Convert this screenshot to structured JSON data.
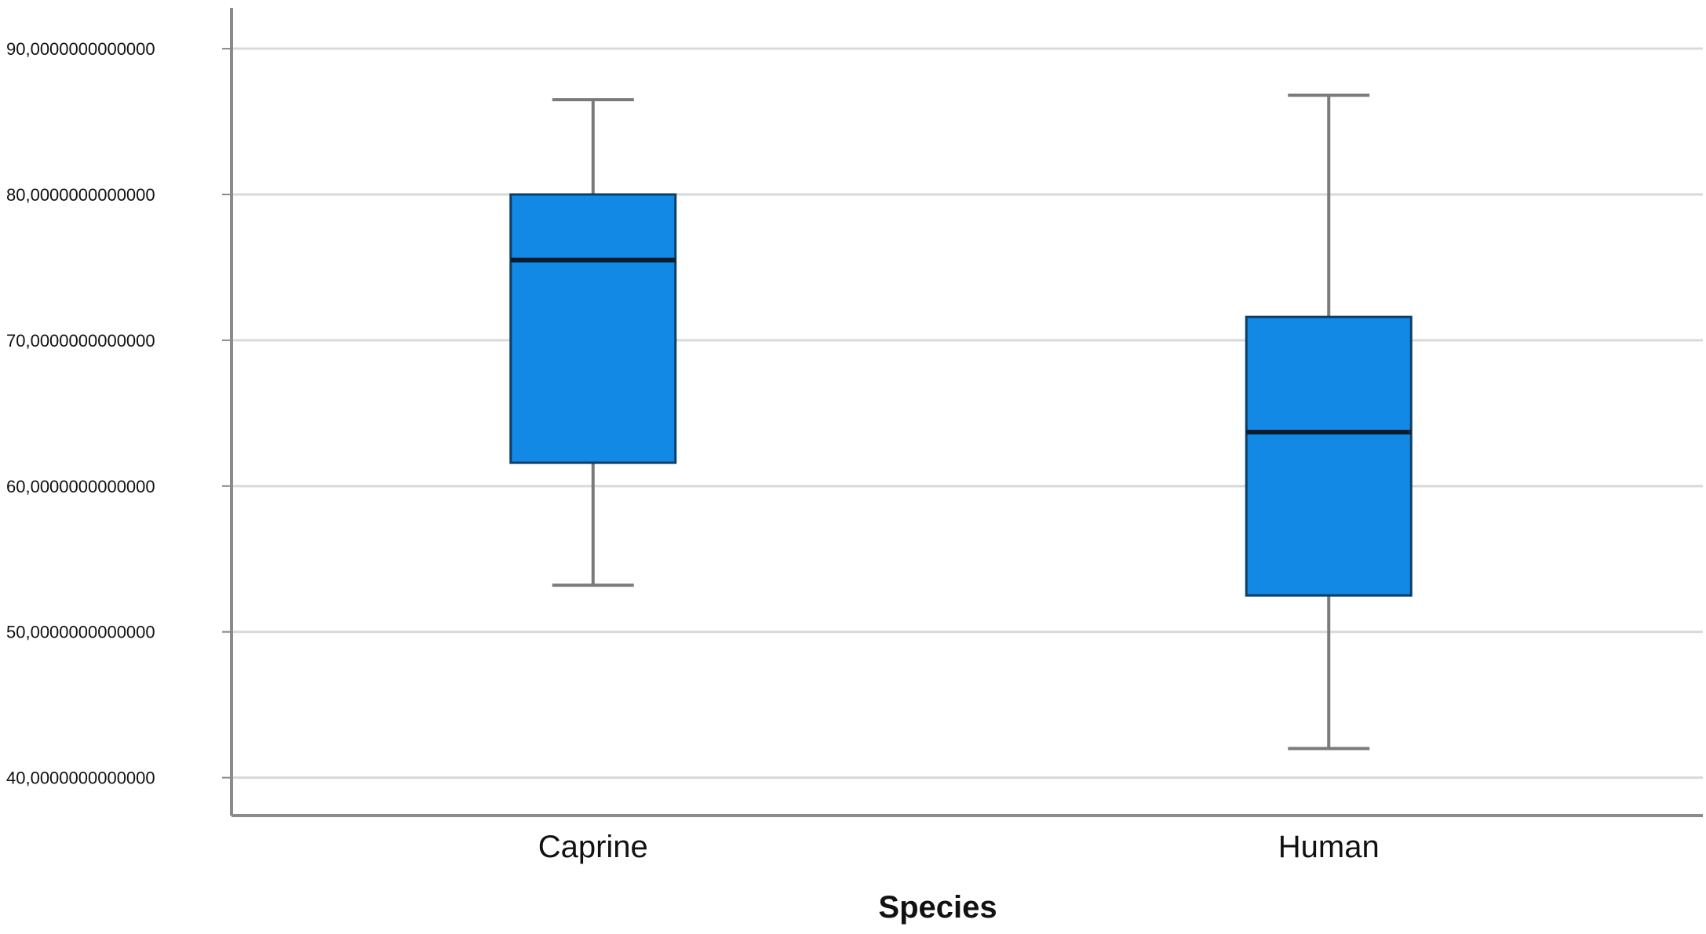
{
  "chart_data": {
    "type": "boxplot",
    "title": "",
    "xlabel": "Species",
    "ylabel": "",
    "ylim": [
      37.4,
      92.8
    ],
    "yticks": [
      40,
      50,
      60,
      70,
      80,
      90
    ],
    "ytick_labels": [
      "40,0000000000000",
      "50,0000000000000",
      "60,0000000000000",
      "70,0000000000000",
      "80,0000000000000",
      "90,0000000000000"
    ],
    "grid": true,
    "categories": [
      "Caprine",
      "Human"
    ],
    "boxes": [
      {
        "category": "Caprine",
        "whisker_low": 53.2,
        "q1": 61.6,
        "median": 75.5,
        "q3": 80.0,
        "whisker_high": 86.5
      },
      {
        "category": "Human",
        "whisker_low": 42.0,
        "q1": 52.5,
        "median": 63.7,
        "q3": 71.6,
        "whisker_high": 86.8
      }
    ],
    "colors": {
      "box_fill": "#1389E6",
      "box_edge": "#0d3f66",
      "median": "#0a1d2e",
      "whisker": "#7a7a7a",
      "grid": "#d9d9d9",
      "axis": "#8a8a8a"
    }
  }
}
